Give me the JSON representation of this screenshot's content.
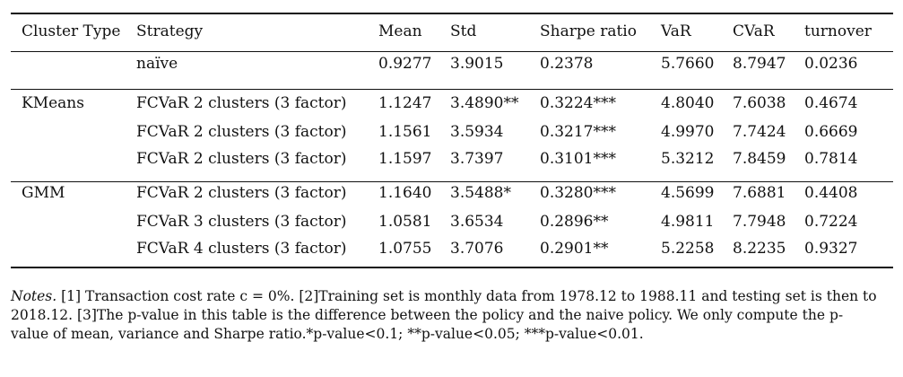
{
  "table": {
    "headers": [
      "Cluster Type",
      "Strategy",
      "Mean",
      "Std",
      "Sharpe ratio",
      "VaR",
      "CVaR",
      "turnover"
    ],
    "groups": [
      {
        "cluster": "",
        "rows": [
          [
            "naïve",
            "0.9277",
            "3.9015",
            "0.2378",
            "5.7660",
            "8.7947",
            "0.0236"
          ]
        ]
      },
      {
        "cluster": "KMeans",
        "rows": [
          [
            "FCVaR 2 clusters (3 factor)",
            "1.1247",
            "3.4890**",
            "0.3224***",
            "4.8040",
            "7.6038",
            "0.4674"
          ],
          [
            "FCVaR 2 clusters (3 factor)",
            "1.1561",
            "3.5934",
            "0.3217***",
            "4.9970",
            "7.7424",
            "0.6669"
          ],
          [
            "FCVaR 2 clusters (3 factor)",
            "1.1597",
            "3.7397",
            "0.3101***",
            "5.3212",
            "7.8459",
            "0.7814"
          ]
        ]
      },
      {
        "cluster": "GMM",
        "rows": [
          [
            "FCVaR 2 clusters (3 factor)",
            "1.1640",
            "3.5488*",
            "0.3280***",
            "4.5699",
            "7.6881",
            "0.4408"
          ],
          [
            "FCVaR 3 clusters (3 factor)",
            "1.0581",
            "3.6534",
            "0.2896**",
            "4.9811",
            "7.7948",
            "0.7224"
          ],
          [
            "FCVaR 4 clusters (3 factor)",
            "1.0755",
            "3.7076",
            "0.2901**",
            "5.2258",
            "8.2235",
            "0.9327"
          ]
        ]
      }
    ]
  },
  "notes": {
    "label": "Notes.",
    "text": " [1] Transaction cost rate c = 0%. [2]Training set is monthly data from 1978.12 to 1988.11 and testing set is then to 2018.12. [3]The p-value in this table is the difference between the policy and the naive policy. We only compute the p-value of mean, variance and Sharpe ratio.*p-value<0.1; **p-value<0.05; ***p-value<0.01."
  }
}
